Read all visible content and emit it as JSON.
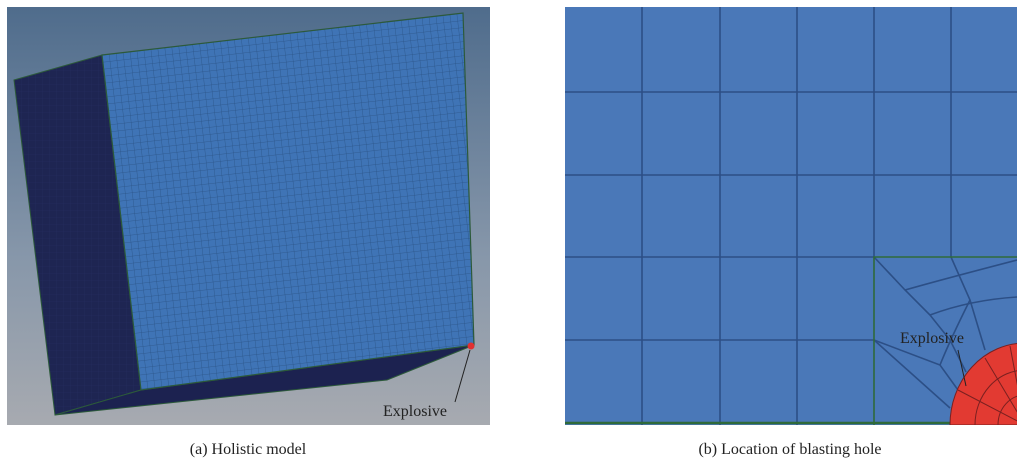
{
  "panels": [
    {
      "caption": "(a) Holistic model",
      "label": "Explosive"
    },
    {
      "caption": "(b) Location of blasting hole",
      "label": "Explosive"
    }
  ]
}
